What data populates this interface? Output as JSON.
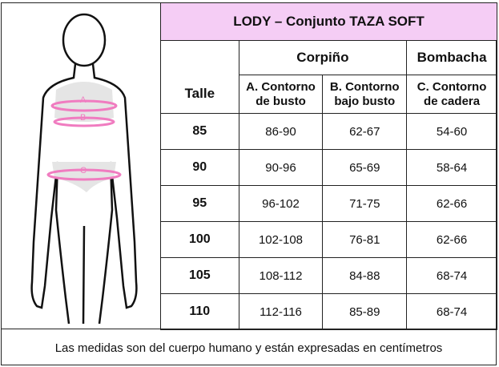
{
  "table": {
    "title": "LODY – Conjunto TAZA SOFT",
    "groups": [
      "Corpiño",
      "Bombacha"
    ],
    "columns": [
      "Talle",
      "A. Contorno de busto",
      "B. Contorno bajo busto",
      "C. Contorno de cadera"
    ],
    "column_lines": [
      [
        "Talle"
      ],
      [
        "A. Contorno",
        "de busto"
      ],
      [
        "B. Contorno",
        "bajo busto"
      ],
      [
        "C. Contorno",
        "de cadera"
      ]
    ],
    "rows": [
      [
        "85",
        "86-90",
        "62-67",
        "54-60"
      ],
      [
        "90",
        "90-96",
        "65-69",
        "58-64"
      ],
      [
        "95",
        "96-102",
        "71-75",
        "62-66"
      ],
      [
        "100",
        "102-108",
        "76-81",
        "62-66"
      ],
      [
        "105",
        "108-112",
        "84-88",
        "68-74"
      ],
      [
        "110",
        "112-116",
        "85-89",
        "68-74"
      ]
    ]
  },
  "figure": {
    "labels": [
      "A",
      "B",
      "C"
    ],
    "accent_color": "#f07cc0",
    "header_color": "#f5cdf5"
  },
  "footer": "Las medidas son del cuerpo humano y están expresadas en centímetros"
}
